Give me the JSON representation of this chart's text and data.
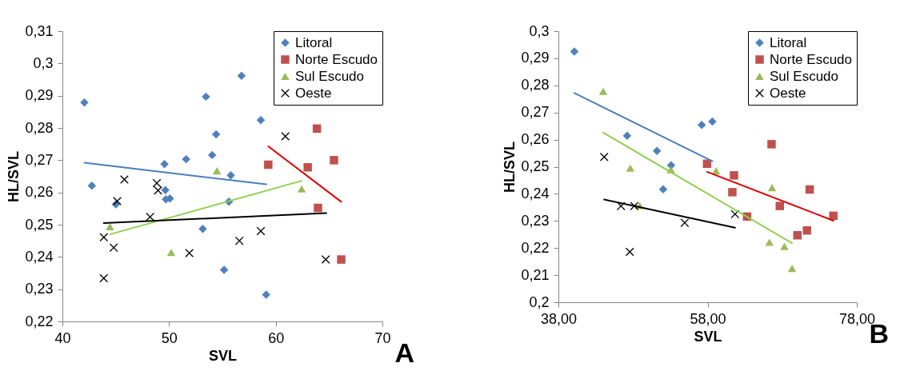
{
  "chart_data": [
    {
      "type": "scatter",
      "xlabel": "SVL",
      "ylabel": "HL/SVL",
      "annotations": [
        "A"
      ],
      "legend": "top right",
      "grid": false,
      "xlim": [
        40,
        70
      ],
      "xticks": [
        40,
        50,
        60,
        70
      ],
      "ylim": [
        0.22,
        0.31
      ],
      "yticks": [
        {
          "value": 0.22,
          "label": "0,22"
        },
        {
          "value": 0.23,
          "label": "0,23"
        },
        {
          "value": 0.24,
          "label": "0,24"
        },
        {
          "value": 0.25,
          "label": "0,25"
        },
        {
          "value": 0.26,
          "label": "0,26"
        },
        {
          "value": 0.27,
          "label": "0,27"
        },
        {
          "value": 0.28,
          "label": "0,28"
        },
        {
          "value": 0.29,
          "label": "0,29"
        },
        {
          "value": 0.3,
          "label": "0,3"
        },
        {
          "value": 0.31,
          "label": "0,31"
        }
      ],
      "series": [
        {
          "name": "Litoral",
          "color": "#4f81bd",
          "marker": "diamond",
          "x": [
            42.06,
            42.76,
            45.01,
            49.57,
            49.65,
            49.7,
            50.08,
            51.6,
            53.46,
            54.04,
            54.41,
            55.79,
            55.61,
            53.16,
            55.16,
            56.79,
            58.6,
            59.1
          ],
          "values": [
            0.2879,
            0.2621,
            0.2563,
            0.2688,
            0.2607,
            0.2579,
            0.2581,
            0.2703,
            0.2897,
            0.2716,
            0.278,
            0.2653,
            0.2571,
            0.2487,
            0.236,
            0.2962,
            0.2824,
            0.2283
          ]
        },
        {
          "name": "Norte Escudo",
          "color": "#c0504d",
          "marker": "square",
          "x": [
            59.3,
            63.0,
            63.86,
            65.46,
            63.96,
            66.14
          ],
          "values": [
            0.2686,
            0.2678,
            0.2798,
            0.27,
            0.2552,
            0.2392
          ]
        },
        {
          "name": "Sul Escudo",
          "color": "#9bbb59",
          "marker": "triangle",
          "x": [
            44.46,
            54.49,
            50.2,
            62.43
          ],
          "values": [
            0.2494,
            0.2667,
            0.2414,
            0.2611
          ]
        },
        {
          "name": "Oeste",
          "color": "#000000",
          "marker": "cross",
          "x": [
            43.88,
            44.81,
            43.88,
            45.14,
            45.81,
            48.85,
            48.97,
            48.22,
            51.9,
            56.59,
            58.6,
            60.9,
            64.69
          ],
          "values": [
            0.2461,
            0.2429,
            0.2334,
            0.2573,
            0.264,
            0.2629,
            0.2606,
            0.2524,
            0.2412,
            0.245,
            0.248,
            0.2774,
            0.2392
          ]
        },
        {
          "type": "line",
          "color": "#4a7ebb",
          "x": [
            42.06,
            59.1
          ],
          "values": [
            0.2692,
            0.2625
          ]
        },
        {
          "type": "line",
          "color": "#e00000",
          "x": [
            59.3,
            66.14
          ],
          "values": [
            0.2743,
            0.2571
          ]
        },
        {
          "type": "line",
          "color": "#92d050",
          "x": [
            44.46,
            62.43
          ],
          "values": [
            0.247,
            0.2636
          ]
        },
        {
          "type": "line",
          "color": "#000000",
          "x": [
            43.88,
            64.74
          ],
          "values": [
            0.2505,
            0.2536
          ]
        }
      ]
    },
    {
      "type": "scatter",
      "xlabel": "SVL",
      "ylabel": "HL/SVL",
      "annotations": [
        "B"
      ],
      "legend": "top right",
      "grid": false,
      "xlim": [
        38,
        78
      ],
      "xticks": [
        {
          "value": 38,
          "label": "38,00"
        },
        {
          "value": 58,
          "label": "58,00"
        },
        {
          "value": 78,
          "label": "78,00"
        }
      ],
      "ylim": [
        0.2,
        0.3
      ],
      "yticks": [
        {
          "value": 0.2,
          "label": "0,2"
        },
        {
          "value": 0.21,
          "label": "0,21"
        },
        {
          "value": 0.22,
          "label": "0,22"
        },
        {
          "value": 0.23,
          "label": "0,23"
        },
        {
          "value": 0.24,
          "label": "0,24"
        },
        {
          "value": 0.25,
          "label": "0,25"
        },
        {
          "value": 0.26,
          "label": "0,26"
        },
        {
          "value": 0.27,
          "label": "0,27"
        },
        {
          "value": 0.28,
          "label": "0,28"
        },
        {
          "value": 0.29,
          "label": "0,29"
        },
        {
          "value": 0.3,
          "label": "0,3"
        }
      ],
      "series": [
        {
          "name": "Litoral",
          "color": "#4f81bd",
          "marker": "diamond",
          "x": [
            40.14,
            47.21,
            51.21,
            53.11,
            52.04,
            57.21,
            58.64
          ],
          "values": [
            0.2925,
            0.2614,
            0.2558,
            0.2505,
            0.2417,
            0.2654,
            0.2667
          ]
        },
        {
          "name": "Norte Escudo",
          "color": "#c0504d",
          "marker": "square",
          "x": [
            57.93,
            61.54,
            61.32,
            63.29,
            66.57,
            67.68,
            71.68,
            70.04,
            71.32,
            74.86
          ],
          "values": [
            0.2511,
            0.2468,
            0.2406,
            0.2316,
            0.2583,
            0.2355,
            0.2416,
            0.2247,
            0.2265,
            0.2319
          ]
        },
        {
          "name": "Sul Escudo",
          "color": "#9bbb59",
          "marker": "triangle",
          "x": [
            44.0,
            47.64,
            48.89,
            53.07,
            59.14,
            66.64,
            66.29,
            68.29,
            69.32
          ],
          "values": [
            0.2778,
            0.2495,
            0.2357,
            0.2489,
            0.2485,
            0.2423,
            0.2221,
            0.2206,
            0.2125
          ]
        },
        {
          "name": "Oeste",
          "color": "#000000",
          "marker": "cross",
          "x": [
            44.14,
            46.39,
            48.18,
            47.57,
            54.93,
            61.68
          ],
          "values": [
            0.2536,
            0.2355,
            0.2355,
            0.2186,
            0.2293,
            0.2325
          ]
        },
        {
          "type": "line",
          "color": "#4a7ebb",
          "x": [
            40.14,
            58.64
          ],
          "values": [
            0.2772,
            0.252
          ]
        },
        {
          "type": "line",
          "color": "#e00000",
          "x": [
            57.93,
            74.86
          ],
          "values": [
            0.2481,
            0.2301
          ]
        },
        {
          "type": "line",
          "color": "#92d050",
          "x": [
            44.0,
            69.32
          ],
          "values": [
            0.2626,
            0.2218
          ]
        },
        {
          "type": "line",
          "color": "#000000",
          "x": [
            44.14,
            61.68
          ],
          "values": [
            0.2379,
            0.2275
          ]
        }
      ]
    }
  ]
}
